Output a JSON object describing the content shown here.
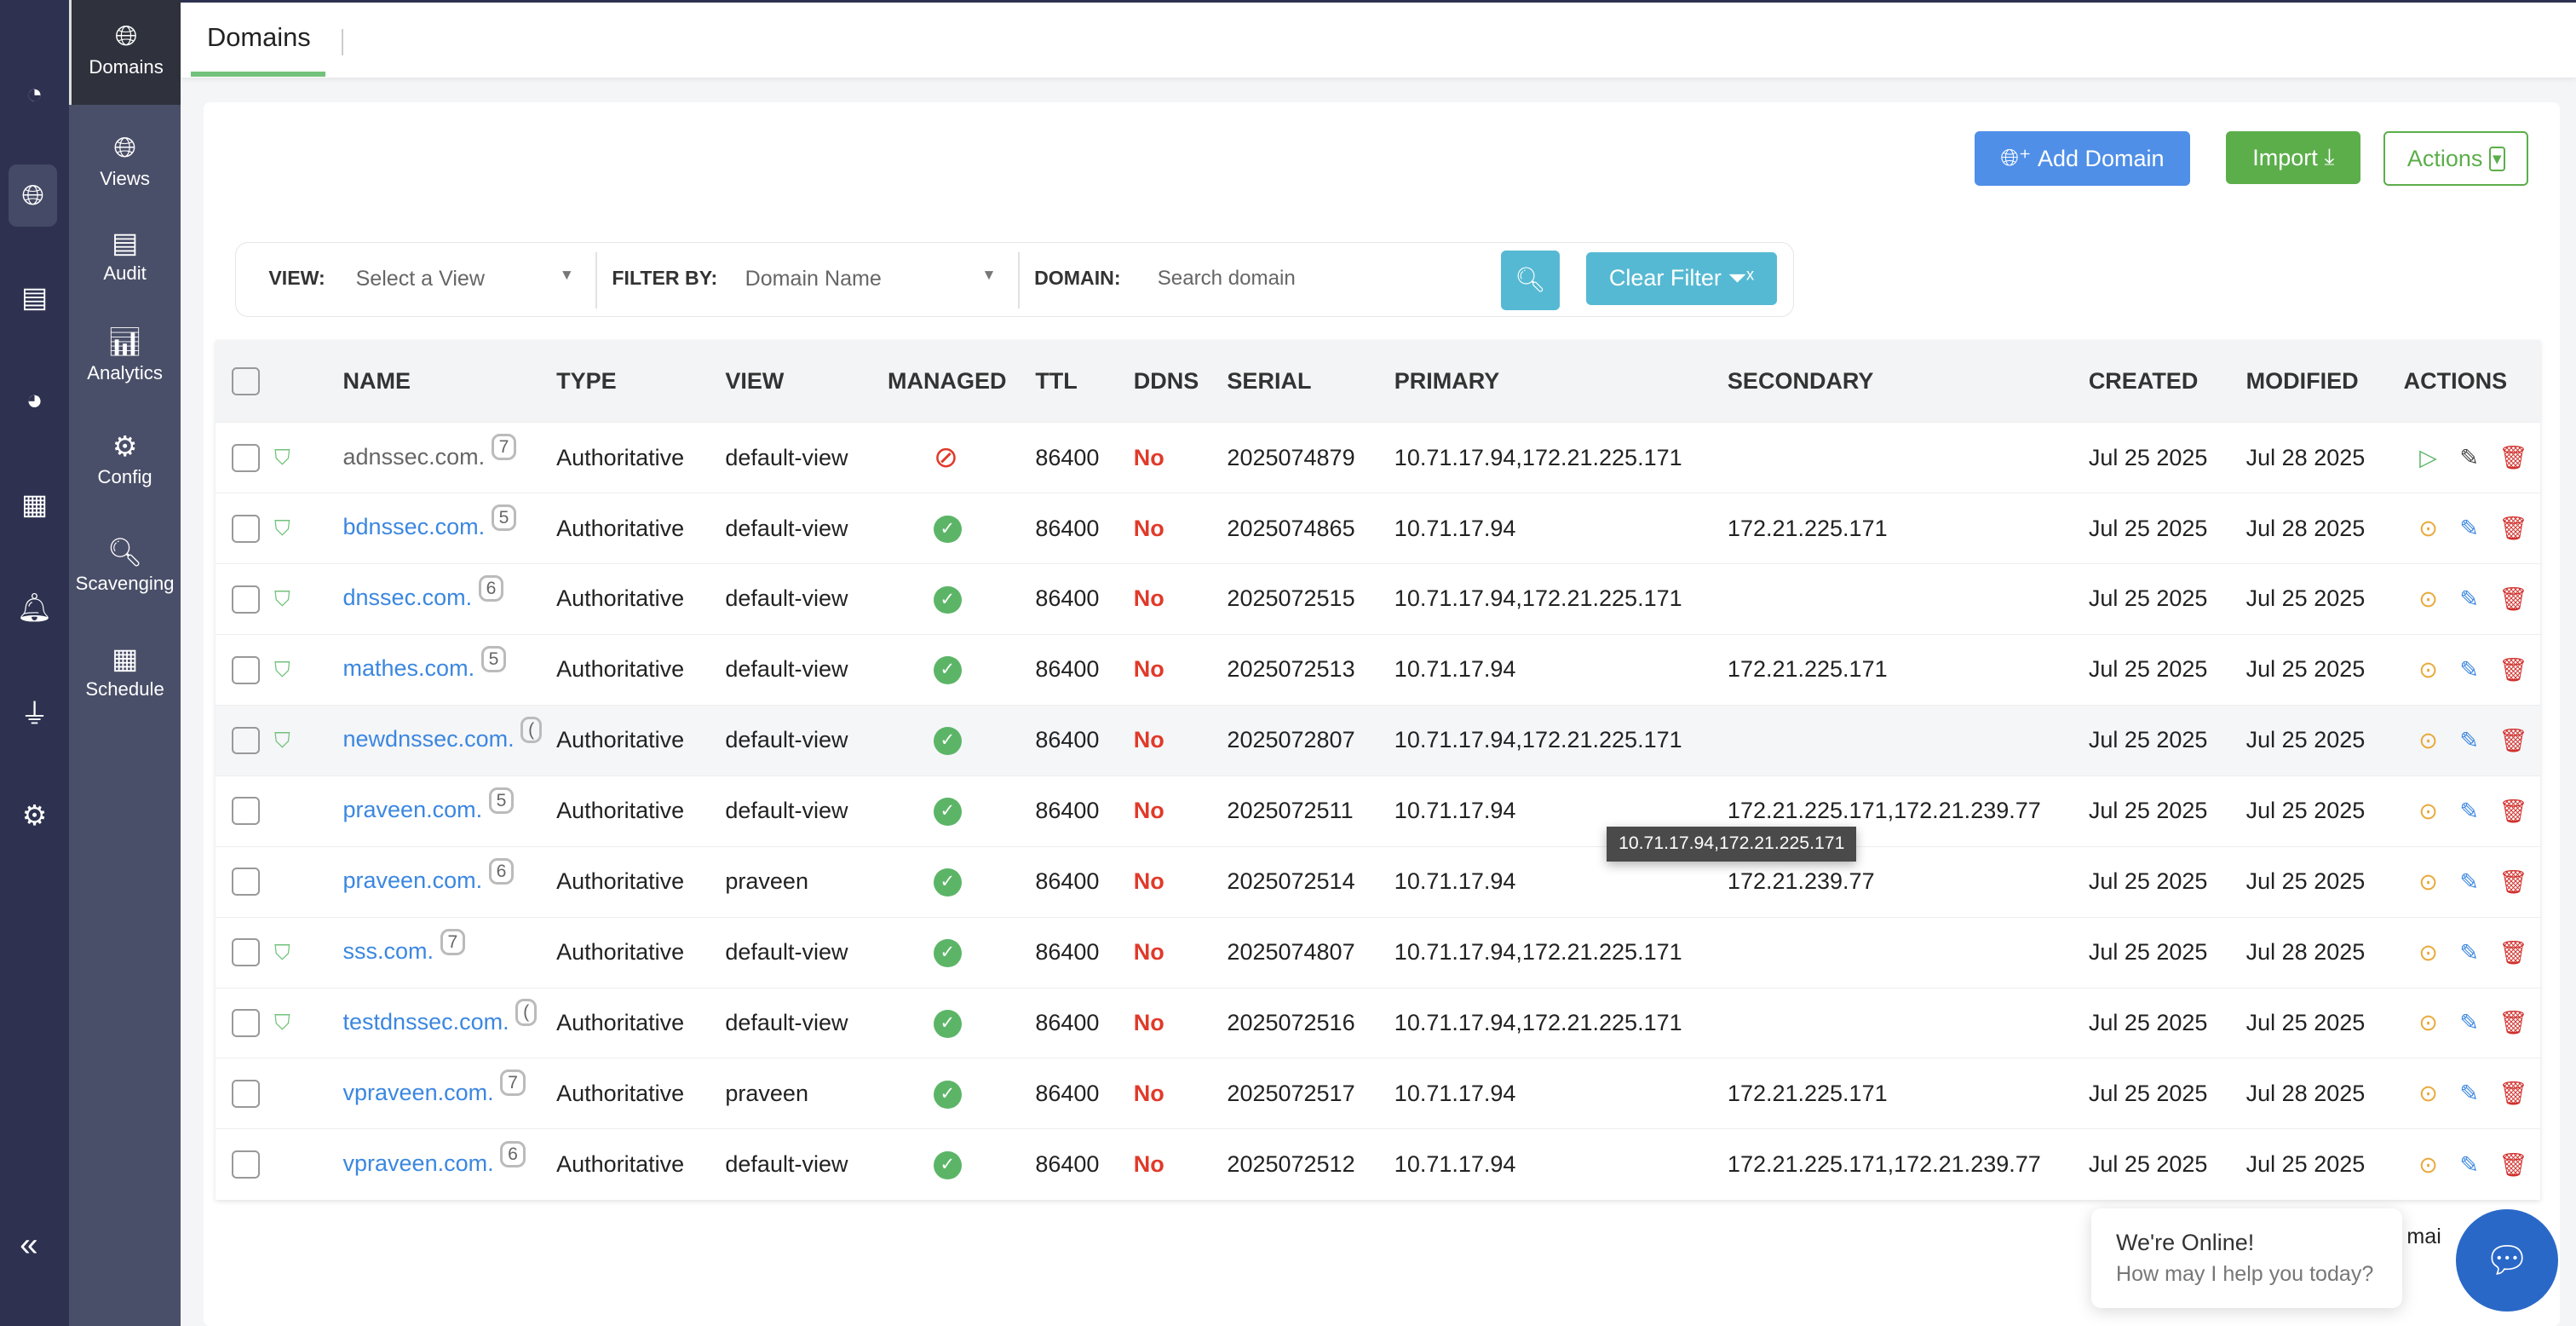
{
  "rail": {
    "icons": [
      "dashboard-icon",
      "dns-icon",
      "network-icon",
      "reports-icon",
      "server-security-icon",
      "bell-icon",
      "plugin-icon",
      "settings-icon"
    ],
    "collapse": "«"
  },
  "sidebar": {
    "items": [
      {
        "label": "Domains",
        "icon": "globe-com-icon"
      },
      {
        "label": "Views",
        "icon": "globe-views-icon"
      },
      {
        "label": "Audit",
        "icon": "audit-icon"
      },
      {
        "label": "Analytics",
        "icon": "analytics-icon"
      },
      {
        "label": "Config",
        "icon": "gears-icon"
      },
      {
        "label": "Scavenging",
        "icon": "scavenging-icon"
      },
      {
        "label": "Schedule",
        "icon": "calendar-icon"
      }
    ]
  },
  "header": {
    "tab": "Domains"
  },
  "toolbar": {
    "add": "Add Domain",
    "import": "Import",
    "actions": "Actions"
  },
  "filter": {
    "view_label": "VIEW:",
    "view_value": "Select a View",
    "filter_label": "FILTER BY:",
    "filter_value": "Domain Name",
    "domain_label": "DOMAIN:",
    "domain_placeholder": "Search domain",
    "clear": "Clear Filter"
  },
  "table": {
    "columns": [
      "NAME",
      "TYPE",
      "VIEW",
      "MANAGED",
      "TTL",
      "DDNS",
      "SERIAL",
      "PRIMARY",
      "SECONDARY",
      "CREATED",
      "MODIFIED",
      "ACTIONS"
    ],
    "rows": [
      {
        "dnssec": true,
        "name": "adnssec.com.",
        "badge": "7",
        "type": "Authoritative",
        "view": "default-view",
        "managed": false,
        "ttl": "86400",
        "ddns": "No",
        "serial": "2025074879",
        "primary": "10.71.17.94,172.21.225.171",
        "secondary": "",
        "created": "Jul 25 2025",
        "modified": "Jul 28 2025",
        "state": "stopped"
      },
      {
        "dnssec": true,
        "name": "bdnssec.com.",
        "badge": "5",
        "type": "Authoritative",
        "view": "default-view",
        "managed": true,
        "ttl": "86400",
        "ddns": "No",
        "serial": "2025074865",
        "primary": "10.71.17.94",
        "secondary": "172.21.225.171",
        "created": "Jul 25 2025",
        "modified": "Jul 28 2025",
        "state": "running"
      },
      {
        "dnssec": true,
        "name": "dnssec.com.",
        "badge": "6",
        "type": "Authoritative",
        "view": "default-view",
        "managed": true,
        "ttl": "86400",
        "ddns": "No",
        "serial": "2025072515",
        "primary": "10.71.17.94,172.21.225.171",
        "secondary": "",
        "created": "Jul 25 2025",
        "modified": "Jul 25 2025",
        "state": "running"
      },
      {
        "dnssec": true,
        "name": "mathes.com.",
        "badge": "5",
        "type": "Authoritative",
        "view": "default-view",
        "managed": true,
        "ttl": "86400",
        "ddns": "No",
        "serial": "2025072513",
        "primary": "10.71.17.94",
        "secondary": "172.21.225.171",
        "created": "Jul 25 2025",
        "modified": "Jul 25 2025",
        "state": "running"
      },
      {
        "dnssec": true,
        "name": "newdnssec.com.",
        "badge": "(",
        "type": "Authoritative",
        "view": "default-view",
        "managed": true,
        "ttl": "86400",
        "ddns": "No",
        "serial": "2025072807",
        "primary": "10.71.17.94,172.21.225.171",
        "secondary": "",
        "created": "Jul 25 2025",
        "modified": "Jul 25 2025",
        "state": "running"
      },
      {
        "dnssec": false,
        "name": "praveen.com.",
        "badge": "5",
        "type": "Authoritative",
        "view": "default-view",
        "managed": true,
        "ttl": "86400",
        "ddns": "No",
        "serial": "2025072511",
        "primary": "10.71.17.94",
        "secondary": "172.21.225.171,172.21.239.77",
        "created": "Jul 25 2025",
        "modified": "Jul 25 2025",
        "state": "running"
      },
      {
        "dnssec": false,
        "name": "praveen.com.",
        "badge": "6",
        "type": "Authoritative",
        "view": "praveen",
        "managed": true,
        "ttl": "86400",
        "ddns": "No",
        "serial": "2025072514",
        "primary": "10.71.17.94",
        "secondary": "172.21.239.77",
        "created": "Jul 25 2025",
        "modified": "Jul 25 2025",
        "state": "running"
      },
      {
        "dnssec": true,
        "name": "sss.com.",
        "badge": "7",
        "type": "Authoritative",
        "view": "default-view",
        "managed": true,
        "ttl": "86400",
        "ddns": "No",
        "serial": "2025074807",
        "primary": "10.71.17.94,172.21.225.171",
        "secondary": "",
        "created": "Jul 25 2025",
        "modified": "Jul 28 2025",
        "state": "running"
      },
      {
        "dnssec": true,
        "name": "testdnssec.com.",
        "badge": "(",
        "type": "Authoritative",
        "view": "default-view",
        "managed": true,
        "ttl": "86400",
        "ddns": "No",
        "serial": "2025072516",
        "primary": "10.71.17.94,172.21.225.171",
        "secondary": "",
        "created": "Jul 25 2025",
        "modified": "Jul 25 2025",
        "state": "running"
      },
      {
        "dnssec": false,
        "name": "vpraveen.com.",
        "badge": "7",
        "type": "Authoritative",
        "view": "praveen",
        "managed": true,
        "ttl": "86400",
        "ddns": "No",
        "serial": "2025072517",
        "primary": "10.71.17.94",
        "secondary": "172.21.225.171",
        "created": "Jul 25 2025",
        "modified": "Jul 28 2025",
        "state": "running"
      },
      {
        "dnssec": false,
        "name": "vpraveen.com.",
        "badge": "6",
        "type": "Authoritative",
        "view": "default-view",
        "managed": true,
        "ttl": "86400",
        "ddns": "No",
        "serial": "2025072512",
        "primary": "10.71.17.94",
        "secondary": "172.21.225.171,172.21.239.77",
        "created": "Jul 25 2025",
        "modified": "Jul 25 2025",
        "state": "running"
      }
    ]
  },
  "tooltip": "10.71.17.94,172.21.225.171",
  "hidden_text": "mai",
  "chat": {
    "title": "We're Online!",
    "subtitle": "How may I help you today?"
  },
  "colors": {
    "rail": "#2e3250",
    "sidebar": "#4a4f69",
    "add": "#4f8fe8",
    "import": "#5cae4b",
    "info": "#56b9d3",
    "chat": "#2a68c8",
    "no": "#e03a2a"
  }
}
